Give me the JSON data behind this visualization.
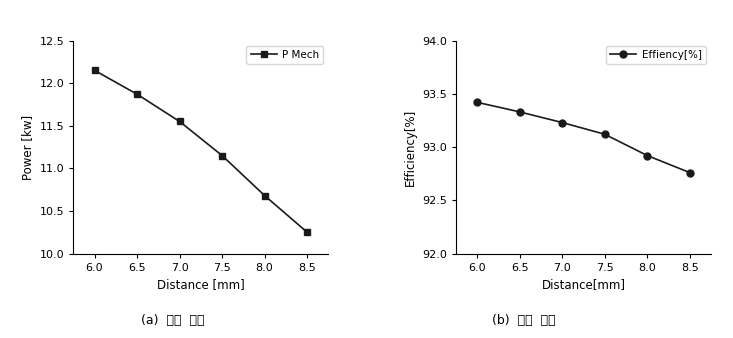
{
  "x": [
    6.0,
    6.5,
    7.0,
    7.5,
    8.0,
    8.5
  ],
  "power": [
    12.15,
    11.87,
    11.55,
    11.15,
    10.68,
    10.25
  ],
  "efficiency": [
    93.42,
    93.33,
    93.23,
    93.12,
    92.92,
    92.76
  ],
  "power_ylabel": "Power [kw]",
  "power_xlabel": "Distance [mm]",
  "efficiency_ylabel": "Efficiency[%]",
  "efficiency_xlabel": "Distance[mm]",
  "power_legend": "P Mech",
  "efficiency_legend": "Effiency[%]",
  "power_ylim": [
    10.0,
    12.5
  ],
  "power_yticks": [
    10.0,
    10.5,
    11.0,
    11.5,
    12.0,
    12.5
  ],
  "efficiency_ylim": [
    92.0,
    94.0
  ],
  "efficiency_yticks": [
    92.0,
    92.5,
    93.0,
    93.5,
    94.0
  ],
  "xticks": [
    6.0,
    6.5,
    7.0,
    7.5,
    8.0,
    8.5
  ],
  "caption_a": "(a)  출력  결과",
  "caption_b": "(b)  효율  결과",
  "line_color": "#1a1a1a",
  "marker_square": "s",
  "marker_circle": "o",
  "markersize": 5,
  "linewidth": 1.2
}
